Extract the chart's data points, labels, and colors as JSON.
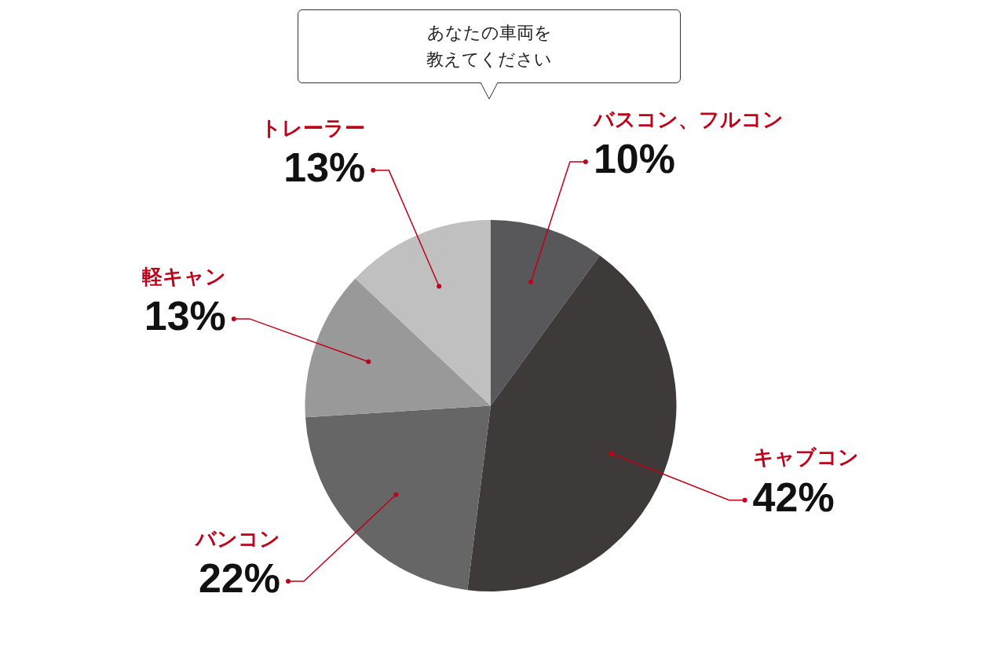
{
  "chart_data": {
    "type": "pie",
    "title": "あなたの車両を教えてください",
    "categories": [
      "バスコン、フルコン",
      "キャブコン",
      "バンコン",
      "軽キャン",
      "トレーラー"
    ],
    "values": [
      10,
      42,
      22,
      13,
      13
    ],
    "value_labels": [
      "10%",
      "42%",
      "22%",
      "13%",
      "13%"
    ],
    "colors": [
      "#58585a",
      "#3e3a39",
      "#666666",
      "#999999",
      "#c0c0c0"
    ],
    "legend": false
  }
}
